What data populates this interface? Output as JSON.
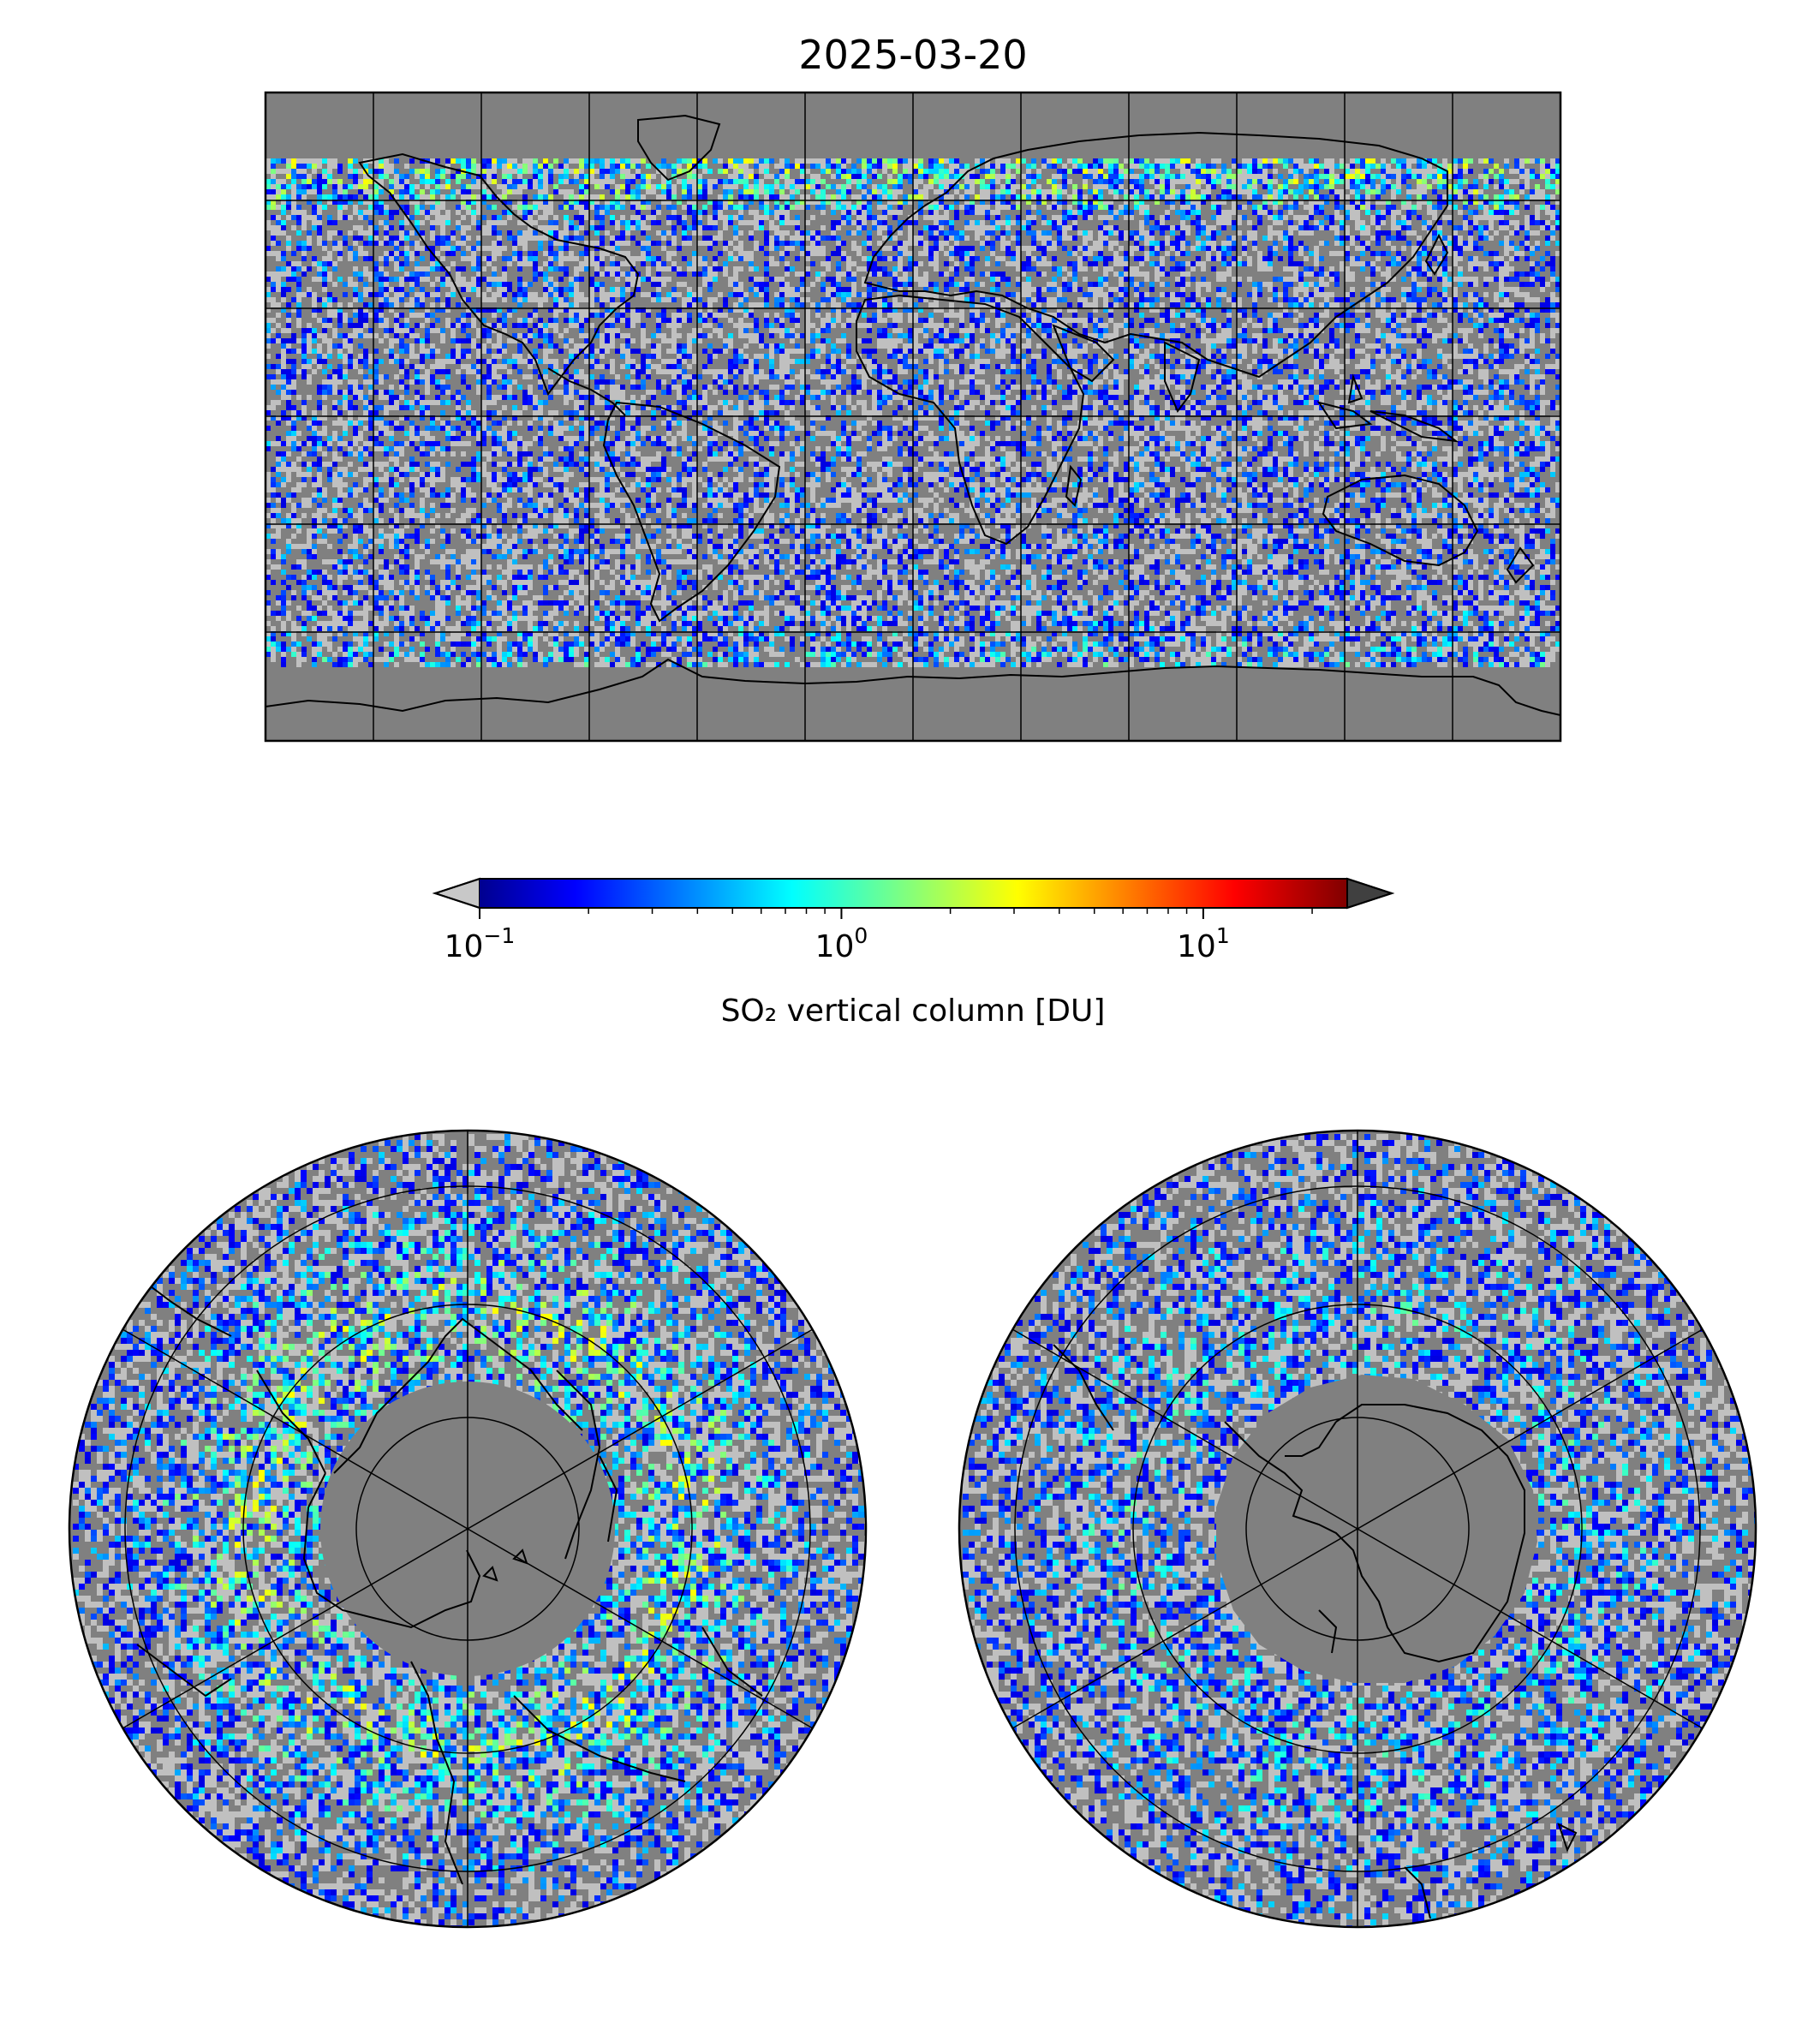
{
  "title": "2025-03-20",
  "colorbar": {
    "label": "SO₂ vertical column [DU]",
    "ticks": [
      {
        "base": "10",
        "exp": "−1",
        "value": 0.1
      },
      {
        "base": "10",
        "exp": "0",
        "value": 1
      },
      {
        "base": "10",
        "exp": "1",
        "value": 10
      }
    ],
    "scale": "log",
    "range": [
      0.1,
      25
    ],
    "colormap": "jet",
    "under_color": "#c8c8c8",
    "over_color": "#404040"
  },
  "colors": {
    "no_data": "#808080",
    "low_value": "#c0c0c0",
    "coastline": "#000000",
    "gridline": "#000000"
  },
  "maps": [
    {
      "name": "global",
      "projection": "plate-carree",
      "meridian_step_deg": 30,
      "parallel_step_deg": 30
    },
    {
      "name": "arctic",
      "projection": "north-polar-stereographic"
    },
    {
      "name": "antarctic",
      "projection": "south-polar-stereographic"
    }
  ]
}
